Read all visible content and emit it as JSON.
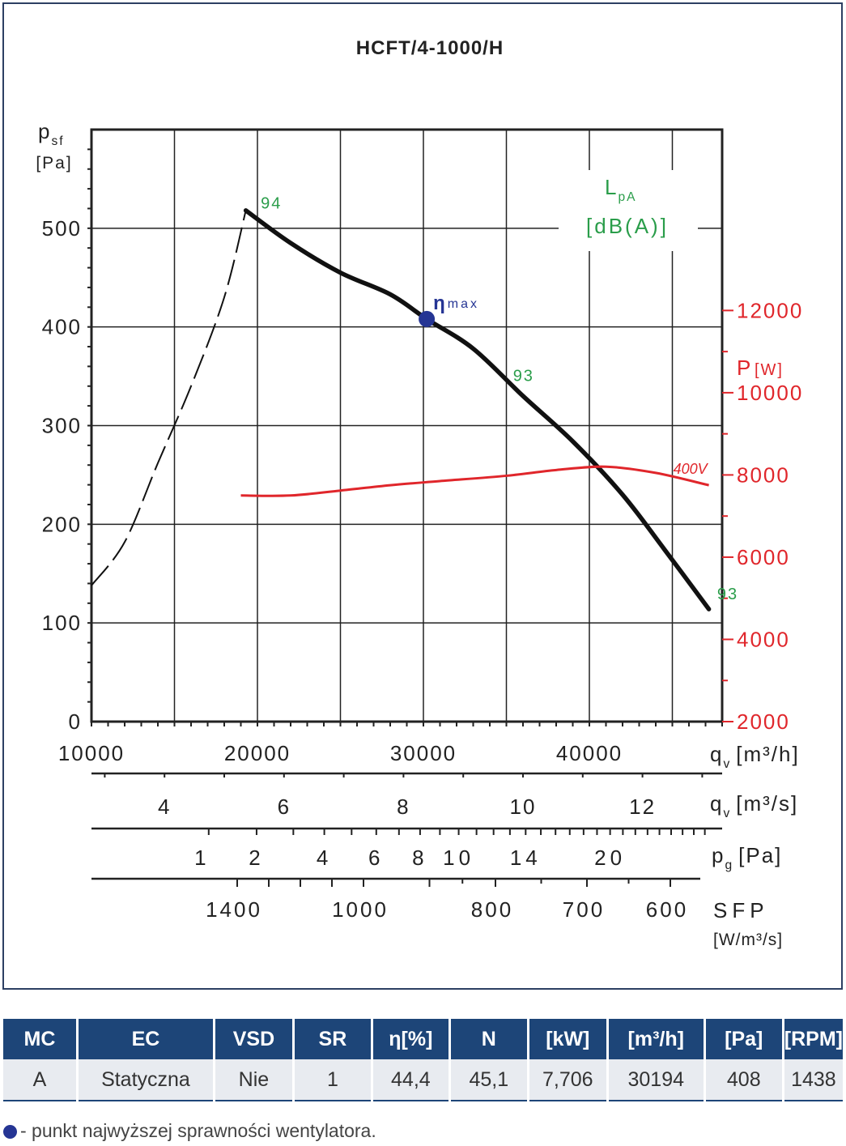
{
  "chart_data": {
    "type": "line",
    "title": "HCFT/4-1000/H",
    "y_axis": {
      "label": "p",
      "label_sub": "sf",
      "unit": "[Pa]",
      "ticks": [
        "0",
        "100",
        "200",
        "300",
        "400",
        "500"
      ],
      "ylim": [
        0,
        600
      ]
    },
    "x_axis": {
      "label": "q",
      "label_sub": "v",
      "unit": "[m³/h]",
      "ticks": [
        "10000",
        "20000",
        "30000",
        "40000"
      ],
      "xlim": [
        10000,
        48000
      ]
    },
    "y2_axis": {
      "label": "P",
      "unit": "[W]",
      "ticks": [
        "2000",
        "4000",
        "6000",
        "8000",
        "10000",
        "12000"
      ],
      "ylim": [
        2000,
        16400
      ],
      "color": "#e0262b"
    },
    "secondary_scales": [
      {
        "label": "q",
        "label_sub": "v",
        "unit": "[m³/s]",
        "ticks": [
          {
            "v": 4,
            "t": "4"
          },
          {
            "v": 6,
            "t": "6"
          },
          {
            "v": 8,
            "t": "8"
          },
          {
            "v": 10,
            "t": "10"
          },
          {
            "v": 12,
            "t": "12"
          }
        ]
      },
      {
        "label": "p",
        "label_sub": "g",
        "unit": "[Pa]",
        "ticks": [
          {
            "v": 1,
            "t": "1"
          },
          {
            "v": 2,
            "t": "2"
          },
          {
            "v": 4,
            "t": "4"
          },
          {
            "v": 6,
            "t": "6"
          },
          {
            "v": 8,
            "t": "8"
          },
          {
            "v": 10,
            "t": "10"
          },
          {
            "v": 14,
            "t": "14"
          },
          {
            "v": 20,
            "t": "20"
          }
        ]
      },
      {
        "label": "SFP",
        "unit": "[W/m³/s]",
        "ticks": [
          {
            "v": 1400,
            "t": "1400"
          },
          {
            "v": 1000,
            "t": "1000"
          },
          {
            "v": 800,
            "t": "800"
          },
          {
            "v": 700,
            "t": "700"
          },
          {
            "v": 600,
            "t": "600"
          }
        ]
      }
    ],
    "grid": true,
    "lpa_label": {
      "main": "L",
      "sub": "pA",
      "unit": "[dB(A)]",
      "color": "#2a9d4a"
    },
    "series": [
      {
        "type": "pressure-dashed",
        "color": "#111111",
        "points": [
          [
            10000,
            138
          ],
          [
            12000,
            182
          ],
          [
            14000,
            262
          ],
          [
            16000,
            340
          ],
          [
            18000,
            430
          ],
          [
            19300,
            518
          ]
        ]
      },
      {
        "type": "pressure-solid",
        "color": "#111111",
        "points": [
          [
            19300,
            518
          ],
          [
            22000,
            485
          ],
          [
            25000,
            455
          ],
          [
            28000,
            433
          ],
          [
            30200,
            408
          ],
          [
            33000,
            378
          ],
          [
            36000,
            330
          ],
          [
            39000,
            284
          ],
          [
            42000,
            230
          ],
          [
            44500,
            175
          ],
          [
            47200,
            114
          ]
        ]
      },
      {
        "name": "400V",
        "type": "power",
        "color": "#e0262b",
        "points": [
          [
            19000,
            7500
          ],
          [
            22000,
            7500
          ],
          [
            25000,
            7620
          ],
          [
            28000,
            7750
          ],
          [
            31000,
            7850
          ],
          [
            35000,
            7980
          ],
          [
            38000,
            8120
          ],
          [
            41000,
            8200
          ],
          [
            44000,
            8050
          ],
          [
            47200,
            7750
          ]
        ]
      }
    ],
    "noise_labels": [
      {
        "text": "94",
        "x": 20200,
        "y": 520
      },
      {
        "text": "93",
        "x": 35400,
        "y": 345
      },
      {
        "text": "93",
        "x": 47700,
        "y": 124
      }
    ],
    "eta_point": {
      "x": 30200,
      "y": 408,
      "label": "η",
      "sub": "max",
      "color": "#253594"
    }
  },
  "table": {
    "headers": [
      "MC",
      "EC",
      "VSD",
      "SR",
      "η[%]",
      "N",
      "[kW]",
      "[m³/h]",
      "[Pa]",
      "[RPM]"
    ],
    "row": [
      "A",
      "Statyczna",
      "Nie",
      "1",
      "44,4",
      "45,1",
      "7,706",
      "30194",
      "408",
      "1438"
    ]
  },
  "legend_note": "- punkt najwyższej sprawności wentylatora."
}
